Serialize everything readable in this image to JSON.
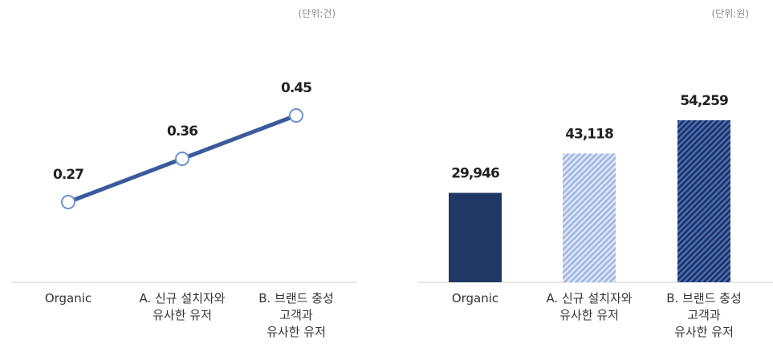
{
  "chart_data": [
    {
      "type": "line",
      "unit": "(단위:건)",
      "categories": [
        "Organic",
        "A. 신규 설치자와\n유사한 유저",
        "B. 브랜드 충성\n고객과\n유사한 유저"
      ],
      "values": [
        0.27,
        0.36,
        0.45
      ],
      "color": "#3a5a9a"
    },
    {
      "type": "bar",
      "unit": "(단위:원)",
      "categories": [
        "Organic",
        "A. 신규 설치자와\n유사한 유저",
        "B. 브랜드 충성\n고객과\n유사한 유저"
      ],
      "values": [
        29946,
        43118,
        54259
      ],
      "value_labels": [
        "29,946",
        "43,118",
        "54,259"
      ],
      "colors": [
        "#213864",
        "#a9bde6",
        "#2a4a8c"
      ]
    }
  ]
}
